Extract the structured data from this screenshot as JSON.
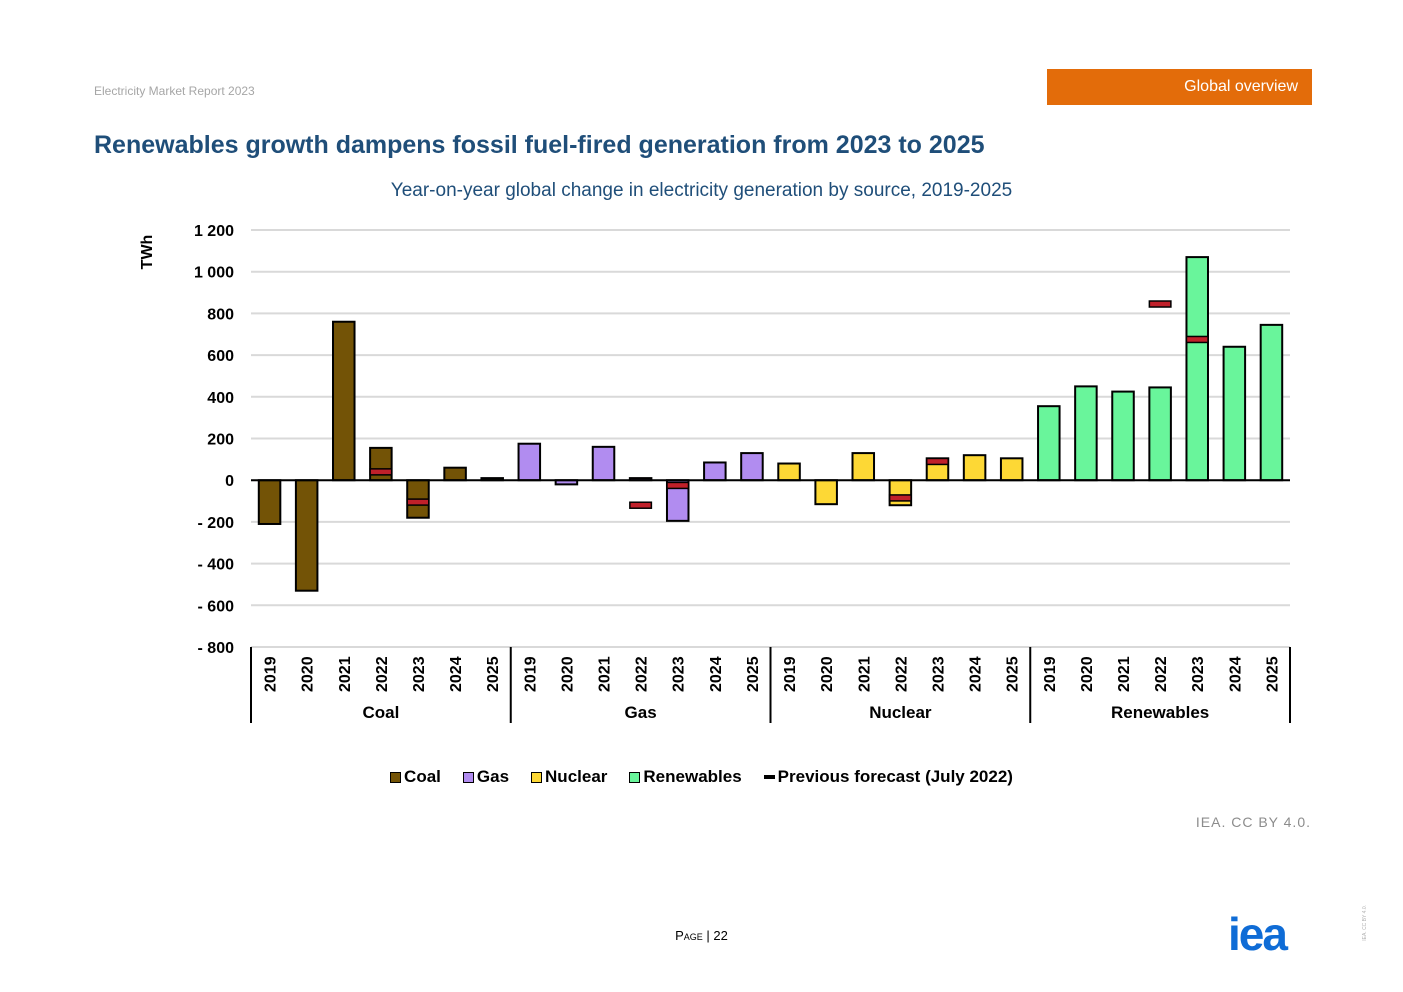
{
  "header": {
    "report_name": "Electricity Market Report 2023",
    "section_tab": "Global overview"
  },
  "headline": "Renewables growth dampens fossil fuel-fired generation from 2023 to 2025",
  "footer": {
    "credit": "IEA. CC BY 4.0.",
    "page_prefix": "Page",
    "page_sep": "|",
    "page_number": "22",
    "logo_text": "iea",
    "vertical_credit": "IEA. CC BY 4.0."
  },
  "colors": {
    "Coal": "#735306",
    "Gas": "#b18cf0",
    "Nuclear": "#fdd835",
    "Renewables": "#69f59b",
    "previous_forecast": "#c0202a",
    "title": "#1f4e79",
    "section_tab": "#e36c0a",
    "logo": "#0f6cd6"
  },
  "chart_data": {
    "type": "bar",
    "title": "Year-on-year global change in electricity generation by source, 2019-2025",
    "ylabel": "TWh",
    "ylim": [
      -800,
      1200
    ],
    "yticks": [
      1200,
      1000,
      800,
      600,
      400,
      200,
      0,
      -200,
      -400,
      -600,
      -800
    ],
    "ytick_labels": [
      "1 200",
      "1 000",
      "800",
      "600",
      "400",
      "200",
      "0",
      "- 200",
      "- 400",
      "- 600",
      "- 800"
    ],
    "grid": true,
    "legend_position": "bottom",
    "legend": [
      "Coal",
      "Gas",
      "Nuclear",
      "Renewables",
      "Previous forecast (July 2022)"
    ],
    "years": [
      "2019",
      "2020",
      "2021",
      "2022",
      "2023",
      "2024",
      "2025"
    ],
    "groups": [
      {
        "name": "Coal",
        "values": [
          -210,
          -530,
          760,
          155,
          -180,
          60,
          10
        ],
        "previous_forecast": [
          null,
          null,
          null,
          40,
          -105,
          null,
          null
        ]
      },
      {
        "name": "Gas",
        "values": [
          175,
          -20,
          160,
          10,
          -195,
          85,
          130
        ],
        "previous_forecast": [
          null,
          null,
          null,
          -120,
          -25,
          null,
          null
        ]
      },
      {
        "name": "Nuclear",
        "values": [
          80,
          -115,
          130,
          -120,
          105,
          120,
          105
        ],
        "previous_forecast": [
          null,
          null,
          null,
          -85,
          90,
          null,
          null
        ]
      },
      {
        "name": "Renewables",
        "values": [
          355,
          450,
          425,
          445,
          1070,
          640,
          745
        ],
        "previous_forecast": [
          null,
          null,
          null,
          845,
          675,
          null,
          null
        ]
      }
    ]
  }
}
